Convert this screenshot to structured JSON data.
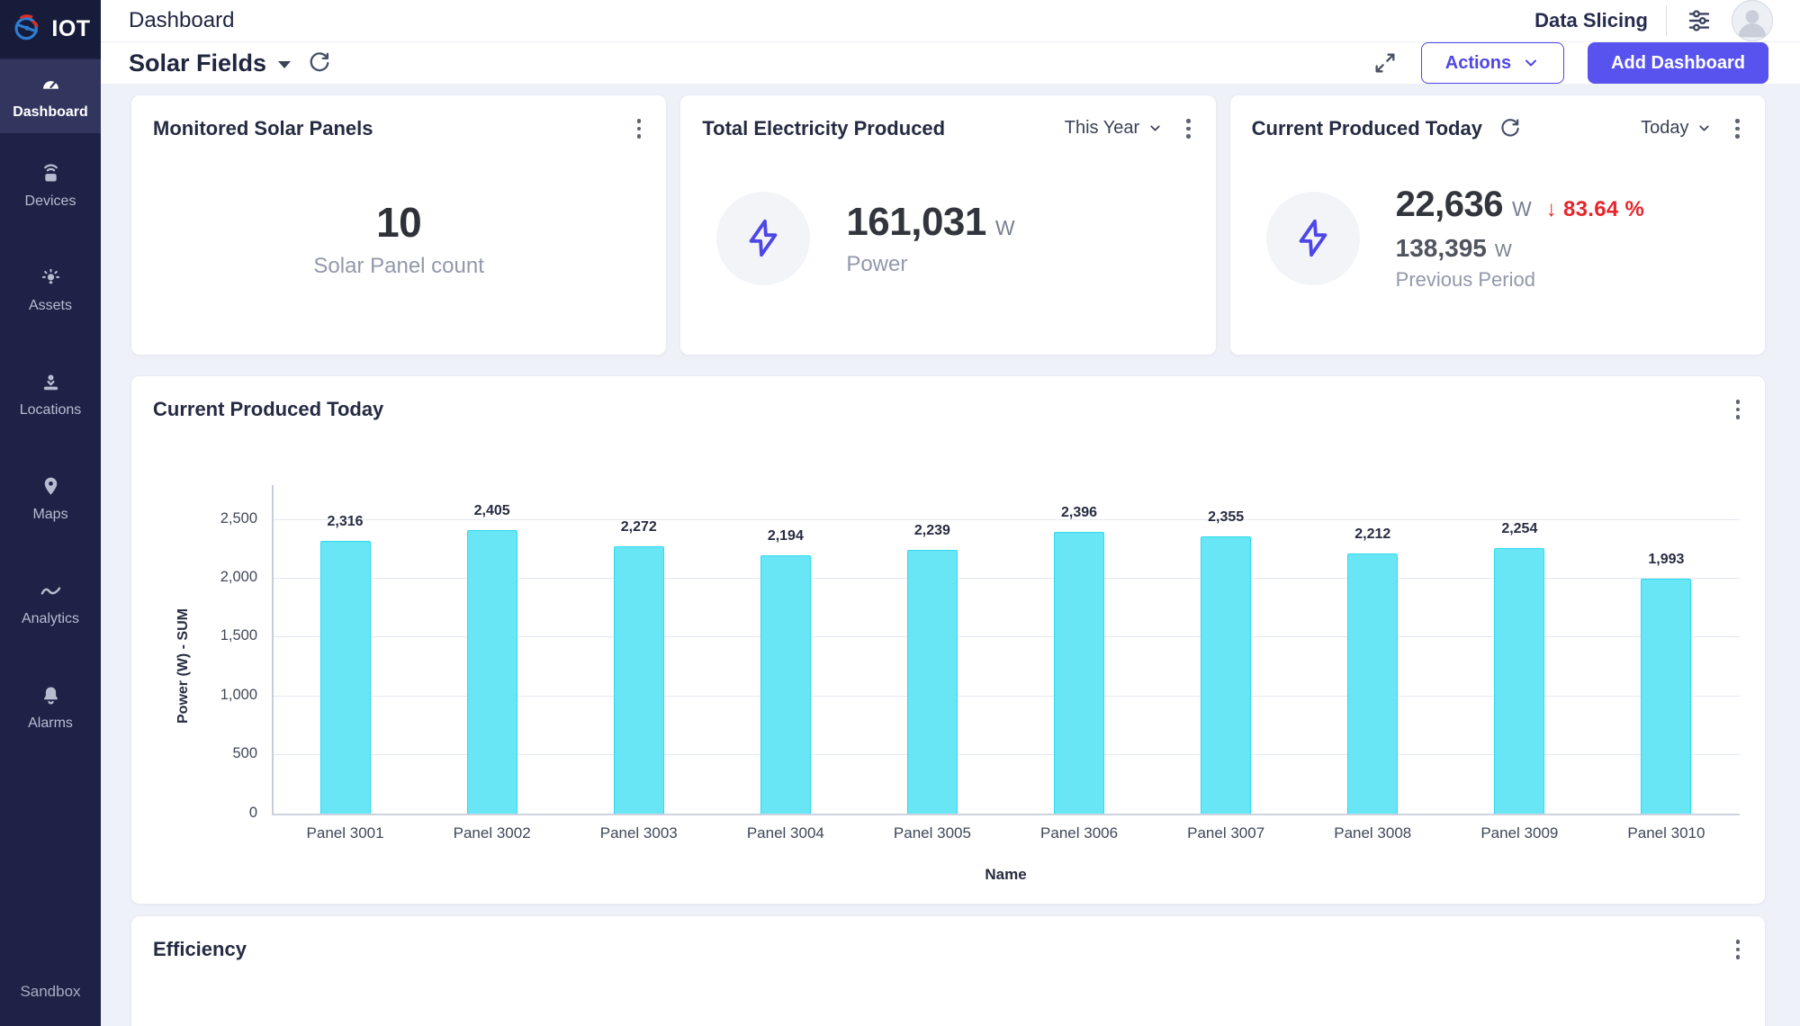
{
  "app": {
    "logo_text": "IOT",
    "header_title": "Dashboard",
    "data_slicing_label": "Data Slicing"
  },
  "sidebar": {
    "items": [
      {
        "label": "Dashboard",
        "icon": "gauge-icon",
        "active": true
      },
      {
        "label": "Devices",
        "icon": "device-wifi-icon",
        "active": false
      },
      {
        "label": "Assets",
        "icon": "lightbulb-icon",
        "active": false
      },
      {
        "label": "Locations",
        "icon": "location-base-icon",
        "active": false
      },
      {
        "label": "Maps",
        "icon": "map-pin-icon",
        "active": false
      },
      {
        "label": "Analytics",
        "icon": "wave-chart-icon",
        "active": false
      },
      {
        "label": "Alarms",
        "icon": "bell-icon",
        "active": false
      }
    ],
    "footer_label": "Sandbox"
  },
  "subheader": {
    "dashboard_name": "Solar Fields",
    "actions_label": "Actions",
    "add_dashboard_label": "Add Dashboard"
  },
  "cards": {
    "monitored": {
      "title": "Monitored Solar Panels",
      "value": "10",
      "caption": "Solar Panel count"
    },
    "total_electricity": {
      "title": "Total Electricity Produced",
      "range": "This Year",
      "value": "161,031",
      "unit": "W",
      "caption": "Power"
    },
    "current_today": {
      "title": "Current Produced Today",
      "range": "Today",
      "value": "22,636",
      "unit": "W",
      "delta": "↓ 83.64 %",
      "previous_value": "138,395",
      "previous_unit": "W",
      "previous_caption": "Previous Period"
    }
  },
  "chart_card": {
    "title": "Current Produced Today"
  },
  "efficiency_card": {
    "title": "Efficiency"
  },
  "chart_data": {
    "type": "bar",
    "title": "Current Produced Today",
    "categories": [
      "Panel 3001",
      "Panel 3002",
      "Panel 3003",
      "Panel 3004",
      "Panel 3005",
      "Panel 3006",
      "Panel 3007",
      "Panel 3008",
      "Panel 3009",
      "Panel 3010"
    ],
    "values": [
      2316,
      2405,
      2272,
      2194,
      2239,
      2396,
      2355,
      2212,
      2254,
      1993
    ],
    "value_labels": [
      "2,316",
      "2,405",
      "2,272",
      "2,194",
      "2,239",
      "2,396",
      "2,355",
      "2,212",
      "2,254",
      "1,993"
    ],
    "xlabel": "Name",
    "ylabel": "Power (W) - SUM",
    "ylim": [
      0,
      2500
    ],
    "yticks": [
      0,
      500,
      1000,
      1500,
      2000,
      2500
    ],
    "ytick_labels": [
      "0",
      "500",
      "1,000",
      "1,500",
      "2,000",
      "2,500"
    ],
    "grid": true,
    "legend": false,
    "bar_color": "#69e6f5",
    "bar_border": "#2fd9ef"
  },
  "colors": {
    "accent_indigo": "#4f46e5",
    "primary_button": "#5853ee",
    "negative_red": "#e6252b",
    "bar_fill": "#69e6f5",
    "bar_stroke": "#2fd9ef",
    "sidebar_bg": "#1e2246",
    "sidebar_active_bg": "#32365f",
    "page_bg": "#eef1f7"
  }
}
